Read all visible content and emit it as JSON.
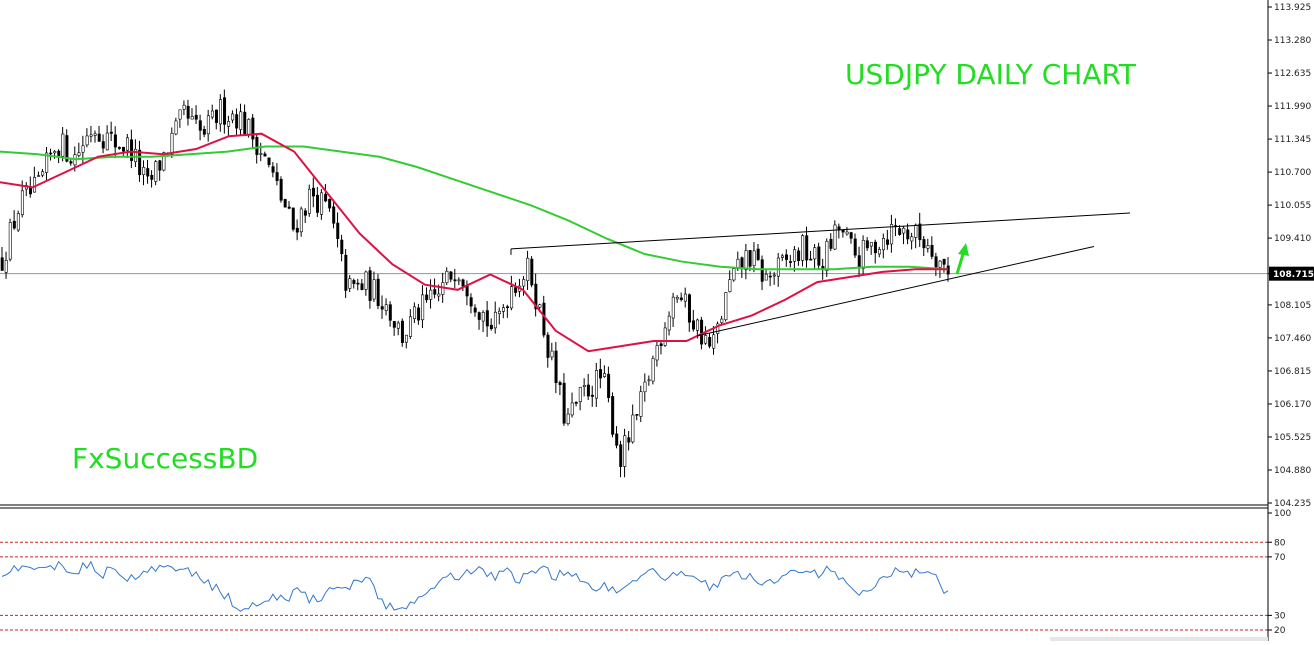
{
  "colors": {
    "background": "#ffffff",
    "watermark": "#22dd22",
    "ma_green": "#33cc33",
    "ma_red": "#dd1144",
    "candle": "#000000",
    "rsi_line": "#3377cc",
    "rsi_levels": "#cc2222",
    "price_line": "#8899aa",
    "arrow": "#22dd22"
  },
  "overlay": {
    "title": "USDJPY DAILY CHART",
    "brand": "FxSuccessBD"
  },
  "chart_data": [
    {
      "type": "candlestick",
      "symbol": "USDJPY",
      "timeframe": "daily",
      "title": "USDJPY DAILY CHART",
      "y_ticks": [
        "113.925",
        "113.280",
        "112.635",
        "111.990",
        "111.345",
        "110.700",
        "110.055",
        "109.410",
        "108.715",
        "108.105",
        "107.460",
        "106.815",
        "106.170",
        "105.525",
        "104.880",
        "104.235"
      ],
      "ylim": [
        104.235,
        113.925
      ],
      "current_price": "108.715",
      "close_path": [
        109.0,
        110.1,
        110.4,
        111.3,
        111.0,
        111.6,
        111.3,
        111.2,
        110.4,
        111.1,
        111.8,
        111.4,
        111.9,
        111.8,
        111.3,
        110.5,
        109.6,
        110.3,
        109.9,
        108.4,
        108.5,
        108.2,
        107.5,
        108.0,
        108.3,
        108.9,
        108.2,
        107.6,
        108.5,
        108.8,
        107.3,
        105.8,
        106.4,
        106.7,
        105.1,
        106.0,
        107.3,
        108.4,
        107.8,
        107.2,
        108.5,
        109.1,
        108.6,
        108.9,
        109.2,
        108.9,
        109.6,
        109.0,
        109.3,
        109.6,
        109.5,
        109.3,
        108.7
      ],
      "ma_200_path": [
        111.1,
        111.05,
        110.95,
        111.0,
        111.0,
        111.05,
        111.1,
        111.2,
        111.2,
        111.1,
        111.0,
        110.8,
        110.55,
        110.3,
        110.05,
        109.75,
        109.4,
        109.1,
        108.95,
        108.85,
        108.8,
        108.8,
        108.8,
        108.85,
        108.85,
        108.8
      ],
      "ma_50_path": [
        110.5,
        110.4,
        110.7,
        111.0,
        111.1,
        111.05,
        111.15,
        111.4,
        111.45,
        111.1,
        110.3,
        109.5,
        108.9,
        108.5,
        108.4,
        108.7,
        108.4,
        107.6,
        107.2,
        107.3,
        107.4,
        107.4,
        107.7,
        107.9,
        108.2,
        108.55,
        108.65,
        108.75,
        108.8,
        108.8
      ],
      "trendlines": [
        {
          "from": [
            105.0,
            109.2
          ],
          "to": [
            109.4,
            109.9
          ]
        },
        {
          "from": [
            105.3,
            107.5
          ],
          "to": [
            109.0,
            108.7
          ]
        }
      ],
      "series": [
        {
          "name": "",
          "role": "200-period moving average",
          "color": "#33cc33"
        },
        {
          "name": "",
          "role": "50-period moving average",
          "color": "#dd1144"
        }
      ],
      "annotation": "green up arrow"
    },
    {
      "type": "line",
      "indicator": "RSI",
      "y_ticks": [
        "100",
        "80",
        "70",
        "30",
        "20"
      ],
      "ylim": [
        20,
        100
      ],
      "levels": [
        80,
        70,
        30,
        20
      ],
      "values": [
        60,
        62,
        66,
        61,
        65,
        63,
        60,
        66,
        57,
        62,
        55,
        58,
        60,
        63,
        60,
        62,
        57,
        50,
        45,
        37,
        35,
        40,
        44,
        39,
        47,
        42,
        40,
        50,
        48,
        56,
        53,
        38,
        33,
        37,
        45,
        50,
        55,
        57,
        60,
        63,
        55,
        60,
        54,
        58,
        62,
        57,
        60,
        55,
        49,
        51,
        45,
        52,
        54,
        61,
        57,
        56,
        60,
        52,
        48,
        56,
        58,
        55,
        50,
        54,
        58,
        60,
        57,
        61,
        56,
        52,
        45,
        49,
        55,
        61,
        59,
        60,
        56,
        44
      ]
    }
  ]
}
